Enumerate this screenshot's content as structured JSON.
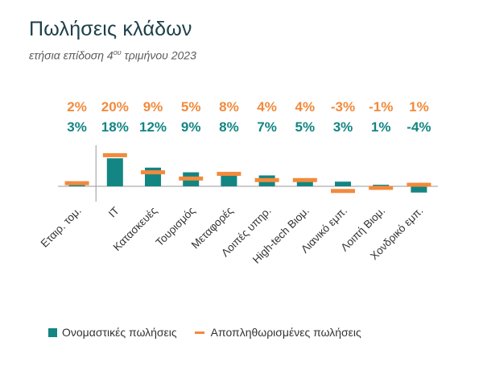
{
  "header": {
    "title": "Πωλήσεις κλάδων",
    "subtitle_main": "ετήσια επίδοση 4",
    "subtitle_sup": "ου",
    "subtitle_tail": " τριμήνου 2023"
  },
  "colors": {
    "nominal": "#138583",
    "deflated": "#f28a3c",
    "axis": "#9a9a9a",
    "text": "#333333"
  },
  "chart_data": {
    "type": "bar",
    "title": "Πωλήσεις κλάδων",
    "categories": [
      "Εταιρ. τομ.",
      "IT",
      "Κατασκευές",
      "Τουρισμός",
      "Μεταφορές",
      "Λοιπές υπηρ.",
      "High-tech Βιομ.",
      "Λιανικό εμπ.",
      "Λοιπή Βιομ.",
      "Χονδρικό εμπ."
    ],
    "series": [
      {
        "name": "Ονομαστικές πωλήσεις",
        "kind": "bar",
        "values": [
          3,
          18,
          12,
          9,
          8,
          7,
          5,
          3,
          1,
          -4
        ],
        "labels": [
          "3%",
          "18%",
          "12%",
          "9%",
          "8%",
          "7%",
          "5%",
          "3%",
          "1%",
          "-4%"
        ]
      },
      {
        "name": "Αποπληθωρισμένες πωλήσεις",
        "kind": "marker",
        "values": [
          2,
          20,
          9,
          5,
          8,
          4,
          4,
          -3,
          -1,
          1
        ],
        "labels": [
          "2%",
          "20%",
          "9%",
          "5%",
          "8%",
          "4%",
          "4%",
          "-3%",
          "-1%",
          "1%"
        ]
      }
    ],
    "ylim": [
      -6,
      22
    ],
    "grid": false,
    "legend_position": "bottom"
  }
}
